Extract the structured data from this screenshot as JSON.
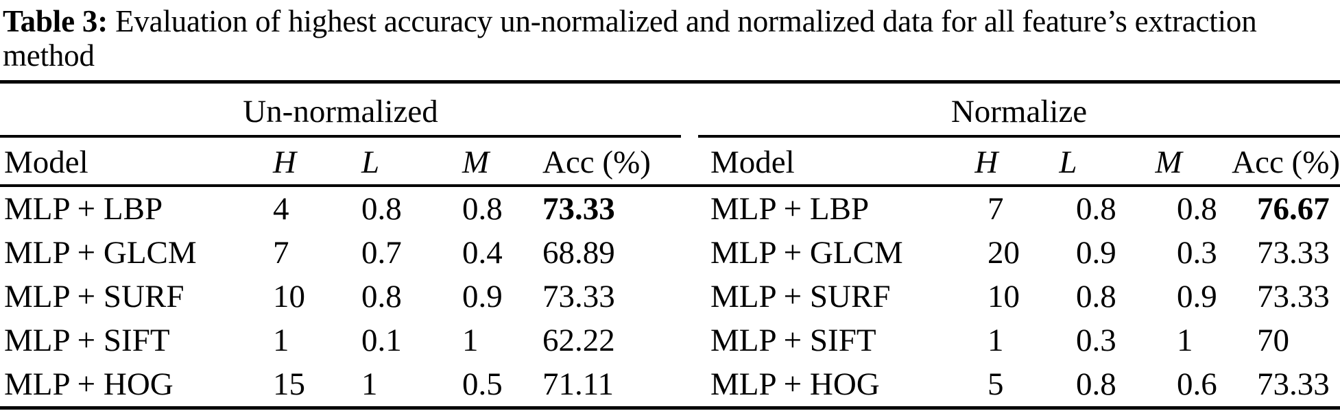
{
  "caption": {
    "label": "Table 3:",
    "text": " Evaluation of highest accuracy un-normalized and normalized data for all feature’s extraction method"
  },
  "table": {
    "groups": [
      {
        "title": "Un-normalized",
        "headers": [
          "Model",
          "H",
          "L",
          "M",
          "Acc (%)"
        ],
        "rows": [
          [
            "MLP + LBP",
            "4",
            "0.8",
            "0.8",
            "73.33"
          ],
          [
            "MLP + GLCM",
            "7",
            "0.7",
            "0.4",
            "68.89"
          ],
          [
            "MLP + SURF",
            "10",
            "0.8",
            "0.9",
            "73.33"
          ],
          [
            "MLP + SIFT",
            "1",
            "0.1",
            "1",
            "62.22"
          ],
          [
            "MLP + HOG",
            "15",
            "1",
            "0.5",
            "71.11"
          ]
        ]
      },
      {
        "title": "Normalize",
        "headers": [
          "Model",
          "H",
          "L",
          "M",
          "Acc (%)"
        ],
        "rows": [
          [
            "MLP + LBP",
            "7",
            "0.8",
            "0.8",
            "76.67"
          ],
          [
            "MLP + GLCM",
            "20",
            "0.9",
            "0.3",
            "73.33"
          ],
          [
            "MLP + SURF",
            "10",
            "0.8",
            "0.9",
            "73.33"
          ],
          [
            "MLP + SIFT",
            "1",
            "0.3",
            "1",
            "70"
          ],
          [
            "MLP + HOG",
            "5",
            "0.8",
            "0.6",
            "73.33"
          ]
        ]
      }
    ]
  }
}
